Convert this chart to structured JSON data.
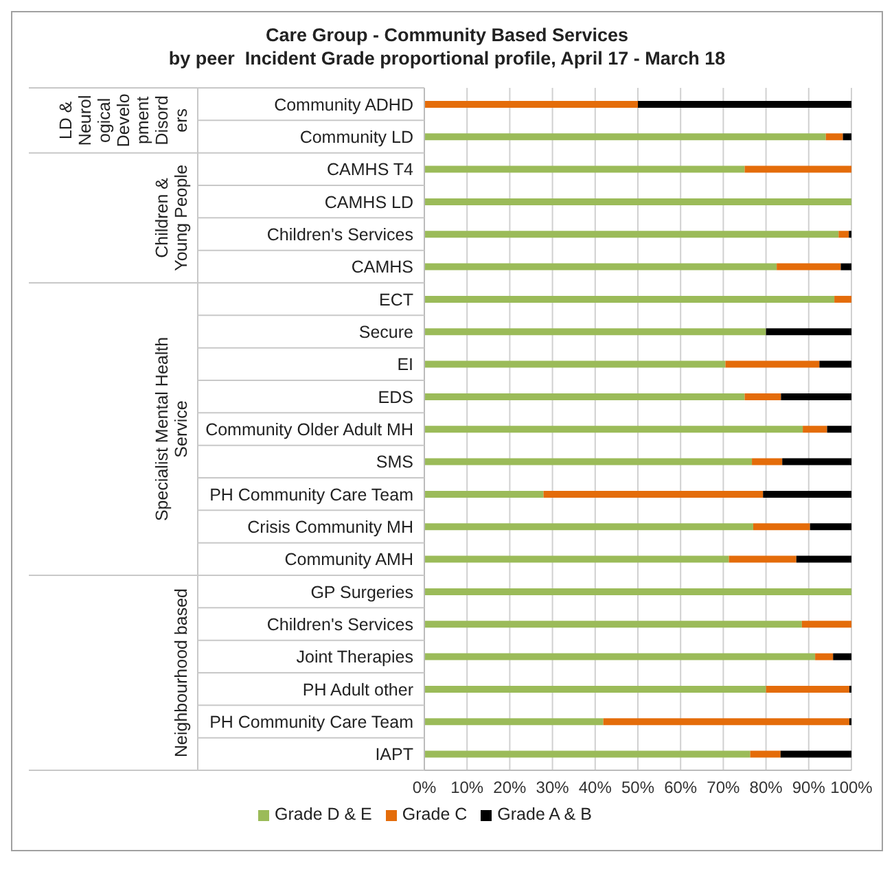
{
  "chart_data": {
    "type": "bar",
    "orientation": "horizontal",
    "stacked": true,
    "title": "Care Group - Community Based Services\nby peer  Incident Grade proportional profile, April 17 - March 18",
    "categories": [
      "Community ADHD",
      "Community LD",
      "CAMHS T4",
      "CAMHS LD",
      "Children's Services",
      "CAMHS",
      "ECT",
      "Secure",
      "EI",
      "EDS",
      "Community Older Adult MH",
      "SMS",
      "PH Community Care Team",
      "Crisis Community MH",
      "Community AMH",
      "GP Surgeries",
      "Children's Services",
      "Joint Therapies",
      "PH Adult other",
      "PH Community Care Team",
      "IAPT"
    ],
    "series": [
      {
        "name": "Grade D & E",
        "color": "#9bbb59",
        "values": [
          0,
          94,
          75,
          100,
          97,
          82.5,
          96,
          80,
          70.5,
          75,
          88.6,
          76.7,
          27.9,
          77,
          71.3,
          100,
          88.4,
          91.5,
          80,
          41.9,
          76.3
        ]
      },
      {
        "name": "Grade C",
        "color": "#e46c0a",
        "values": [
          50,
          4,
          25,
          0,
          2.4,
          15,
          4,
          0,
          22,
          8.5,
          5.7,
          7.1,
          51.4,
          13.3,
          15.8,
          0,
          11.6,
          4.2,
          19.5,
          57.6,
          7.1
        ]
      },
      {
        "name": "Grade A & B",
        "color": "#000000",
        "values": [
          50,
          2,
          0,
          0,
          0.6,
          2.5,
          0,
          20,
          7.5,
          16.5,
          5.7,
          16.2,
          20.7,
          9.7,
          12.9,
          0,
          0,
          4.3,
          0.5,
          0.5,
          16.6
        ]
      }
    ],
    "xlim": [
      0,
      100
    ],
    "xticks": [
      {
        "value": 0,
        "label": "0%"
      },
      {
        "value": 10,
        "label": "10%"
      },
      {
        "value": 20,
        "label": "20%"
      },
      {
        "value": 30,
        "label": "30%"
      },
      {
        "value": 40,
        "label": "40%"
      },
      {
        "value": 50,
        "label": "50%"
      },
      {
        "value": 60,
        "label": "60%"
      },
      {
        "value": 70,
        "label": "70%"
      },
      {
        "value": 80,
        "label": "80%"
      },
      {
        "value": 90,
        "label": "90%"
      },
      {
        "value": 100,
        "label": "100%"
      }
    ],
    "grid": "x",
    "legend": "bottom",
    "annotations": [
      "LD & Neurological Development Disorders",
      "Children & Young People",
      "Specialist Mental Health Service",
      "Neighbourhood based"
    ]
  }
}
